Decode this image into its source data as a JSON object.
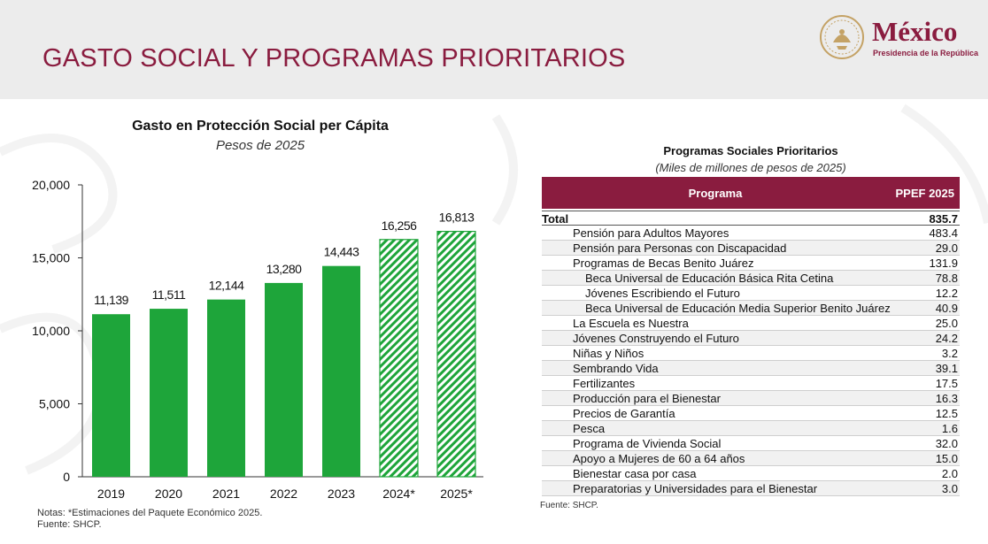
{
  "header": {
    "title": "GASTO SOCIAL Y PROGRAMAS PRIORITARIOS",
    "logo_text": "México",
    "logo_subtitle": "Presidencia de la República"
  },
  "colors": {
    "brand": "#8a1c3f",
    "bar": "#1ea53a"
  },
  "chart_data": {
    "type": "bar",
    "title": "Gasto en Protección Social per Cápita",
    "subtitle": "Pesos de 2025",
    "categories": [
      "2019",
      "2020",
      "2021",
      "2022",
      "2023",
      "2024*",
      "2025*"
    ],
    "values": [
      11139,
      11511,
      12144,
      13280,
      14443,
      16256,
      16813
    ],
    "value_labels": [
      "11,139",
      "11,511",
      "12,144",
      "13,280",
      "14,443",
      "16,256",
      "16,813"
    ],
    "estimated": [
      false,
      false,
      false,
      false,
      false,
      true,
      true
    ],
    "ylim": [
      0,
      20000
    ],
    "yticks": [
      0,
      5000,
      10000,
      15000,
      20000
    ],
    "ytick_labels": [
      "0",
      "5,000",
      "10,000",
      "15,000",
      "20,000"
    ],
    "xlabel": "",
    "ylabel": "",
    "grid": false
  },
  "chart_notes": {
    "notes": "Notas: *Estimaciones del Paquete Económico 2025.",
    "source": "Fuente: SHCP."
  },
  "table": {
    "title": "Programas Sociales Prioritarios",
    "subtitle": "(Miles de millones de pesos de 2025)",
    "col_program": "Programa",
    "col_value": "PPEF 2025",
    "source": "Fuente: SHCP.",
    "rows": [
      {
        "label": "Total",
        "value": "835.7",
        "kind": "total"
      },
      {
        "label": "Pensión para Adultos Mayores",
        "value": "483.4",
        "kind": "main"
      },
      {
        "label": "Pensión para Personas con Discapacidad",
        "value": "29.0",
        "kind": "main"
      },
      {
        "label": "Programas de Becas Benito Juárez",
        "value": "131.9",
        "kind": "main"
      },
      {
        "label": "Beca Universal de Educación Básica Rita Cetina",
        "value": "78.8",
        "kind": "sub"
      },
      {
        "label": "Jóvenes Escribiendo el Futuro",
        "value": "12.2",
        "kind": "sub"
      },
      {
        "label": "Beca Universal de Educación Media Superior Benito Juárez",
        "value": "40.9",
        "kind": "sub"
      },
      {
        "label": "La Escuela es Nuestra",
        "value": "25.0",
        "kind": "main"
      },
      {
        "label": "Jóvenes Construyendo el Futuro",
        "value": "24.2",
        "kind": "main"
      },
      {
        "label": "Niñas y Niños",
        "value": "3.2",
        "kind": "main"
      },
      {
        "label": "Sembrando Vida",
        "value": "39.1",
        "kind": "main"
      },
      {
        "label": "Fertilizantes",
        "value": "17.5",
        "kind": "main"
      },
      {
        "label": "Producción para el Bienestar",
        "value": "16.3",
        "kind": "main"
      },
      {
        "label": "Precios de Garantía",
        "value": "12.5",
        "kind": "main"
      },
      {
        "label": "Pesca",
        "value": "1.6",
        "kind": "main"
      },
      {
        "label": "Programa de Vivienda Social",
        "value": "32.0",
        "kind": "main"
      },
      {
        "label": "Apoyo a Mujeres de 60 a 64 años",
        "value": "15.0",
        "kind": "main"
      },
      {
        "label": "Bienestar casa por casa",
        "value": "2.0",
        "kind": "main"
      },
      {
        "label": "Preparatorias y Universidades para el Bienestar",
        "value": "3.0",
        "kind": "main"
      }
    ]
  }
}
